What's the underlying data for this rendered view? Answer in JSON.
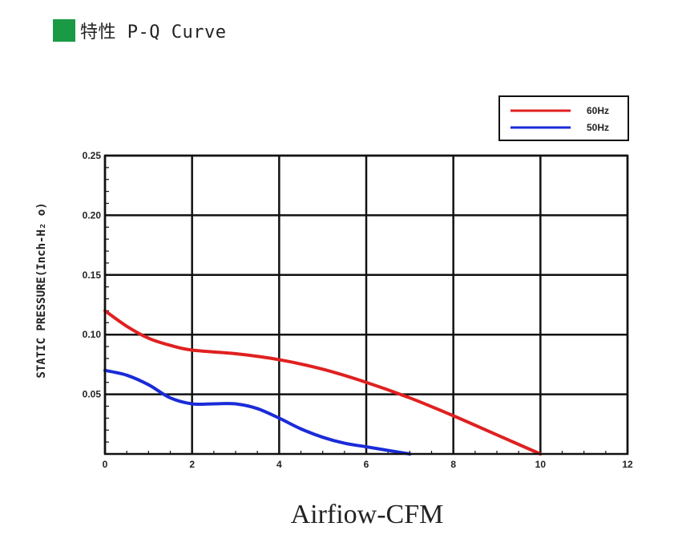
{
  "heading": {
    "text": "特性 P-Q Curve",
    "swatch_color": "#1a9a45",
    "swatch_icon": "green-square-icon"
  },
  "chart_data": {
    "type": "line",
    "title": "特性 P-Q Curve",
    "xlabel": "Airfiow-CFM",
    "ylabel": "STATIC PRESSURE(Inch-H₂ o)",
    "xlim": [
      0,
      12
    ],
    "ylim": [
      0,
      0.25
    ],
    "x_ticks": [
      "0",
      "2",
      "4",
      "6",
      "8",
      "10",
      "12"
    ],
    "y_ticks": [
      "0.05",
      "0.10",
      "0.15",
      "0.20",
      "0.25"
    ],
    "grid": true,
    "legend_position": "top-right",
    "series": [
      {
        "name": "60Hz",
        "color": "#e02020",
        "x": [
          0,
          0.5,
          1,
          1.5,
          2,
          3,
          4,
          5,
          6,
          7,
          8,
          9,
          10
        ],
        "y": [
          0.12,
          0.107,
          0.097,
          0.091,
          0.087,
          0.084,
          0.079,
          0.071,
          0.06,
          0.047,
          0.032,
          0.016,
          0.0
        ]
      },
      {
        "name": "50Hz",
        "color": "#1a2bd8",
        "x": [
          0,
          0.5,
          1,
          1.5,
          2,
          2.5,
          3,
          3.5,
          4,
          4.5,
          5,
          5.5,
          6,
          6.5,
          7
        ],
        "y": [
          0.07,
          0.066,
          0.058,
          0.047,
          0.042,
          0.042,
          0.042,
          0.038,
          0.03,
          0.021,
          0.014,
          0.009,
          0.006,
          0.003,
          0.0
        ]
      }
    ]
  }
}
